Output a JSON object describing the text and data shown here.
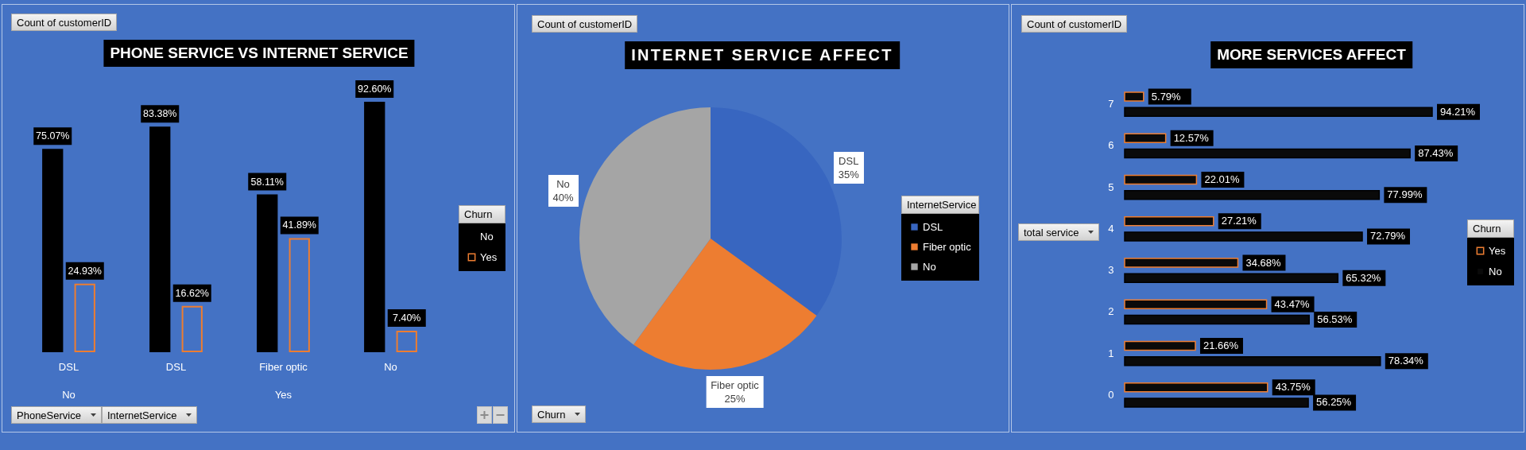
{
  "chart_data": [
    {
      "type": "bar",
      "title": "PHONE SERVICE VS INTERNET SERVICE",
      "categories": [
        "DSL",
        "DSL",
        "Fiber optic",
        "No"
      ],
      "series": [
        {
          "name": "No",
          "color": "#000000",
          "values": [
            75.07,
            83.38,
            58.11,
            92.6
          ],
          "value_labels": [
            "75.07%",
            "83.38%",
            "58.11%",
            "92.60%"
          ]
        },
        {
          "name": "Yes",
          "color": "#ed7d31",
          "values": [
            24.93,
            16.62,
            41.89,
            7.4
          ],
          "value_labels": [
            "24.93%",
            "16.62%",
            "41.89%",
            "7.40%"
          ]
        }
      ],
      "legend": "right",
      "legend_title": "Churn",
      "tick_labels": "x",
      "annotations": [
        "Count of customerID",
        "PhoneService",
        "InternetService",
        "No",
        "Yes"
      ]
    },
    {
      "type": "pie",
      "title": "INTERNET SERVICE AFFECT",
      "categories": [
        "DSL",
        "Fiber optic",
        "No"
      ],
      "values": [
        35,
        25,
        40
      ],
      "colors": [
        "#3866c0",
        "#ed7d31",
        "#a5a5a5"
      ],
      "value_labels": [
        "35%",
        "25%",
        "40%"
      ],
      "legend": "right",
      "legend_title": "InternetService",
      "annotations": [
        "Count of customerID",
        "Churn"
      ]
    },
    {
      "type": "bar",
      "orientation": "horizontal",
      "title": "MORE SERVICES AFFECT",
      "categories": [
        "7",
        "6",
        "5",
        "4",
        "3",
        "2",
        "1",
        "0"
      ],
      "series": [
        {
          "name": "Yes",
          "color": "#ed7d31",
          "values": [
            5.79,
            12.57,
            22.01,
            27.21,
            34.68,
            43.47,
            21.66,
            43.75
          ],
          "value_labels": [
            "5.79%",
            "12.57%",
            "22.01%",
            "27.21%",
            "34.68%",
            "43.47%",
            "21.66%",
            "43.75%"
          ]
        },
        {
          "name": "No",
          "color": "#000000",
          "values": [
            94.21,
            87.43,
            77.99,
            72.79,
            65.32,
            56.53,
            78.34,
            56.25
          ],
          "value_labels": [
            "94.21%",
            "87.43%",
            "77.99%",
            "72.79%",
            "65.32%",
            "56.53%",
            "78.34%",
            "56.25%"
          ]
        }
      ],
      "legend": "right",
      "legend_title": "Churn",
      "ylabel": "total service",
      "tick_labels": "y",
      "annotations": [
        "Count of customerID"
      ]
    }
  ]
}
